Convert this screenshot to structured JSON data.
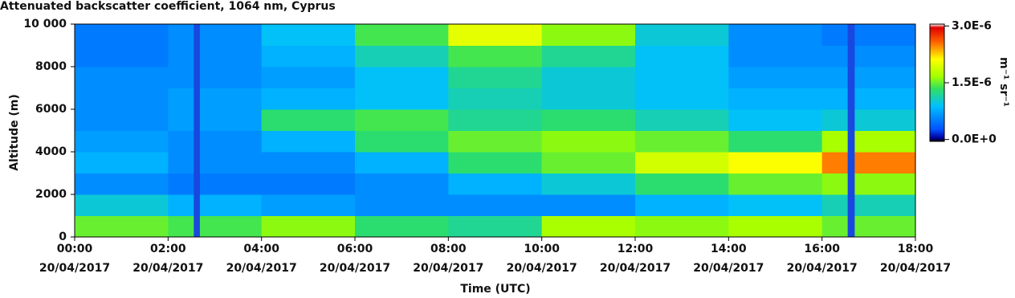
{
  "chart_data": {
    "type": "heatmap",
    "title": "Attenuated backscatter coefficient, 1064 nm, Cyprus",
    "x_label": "Time (UTC)",
    "y_label": "Altitude (m)",
    "colorbar_label": "m⁻¹ sr⁻¹",
    "xlim": [
      0,
      18
    ],
    "xticks": [
      {
        "value": 0,
        "label": "00:00 20/04/2017"
      },
      {
        "value": 2,
        "label": "02:00 20/04/2017"
      },
      {
        "value": 4,
        "label": "04:00 20/04/2017"
      },
      {
        "value": 6,
        "label": "06:00 20/04/2017"
      },
      {
        "value": 8,
        "label": "08:00 20/04/2017"
      },
      {
        "value": 10,
        "label": "10:00 20/04/2017"
      },
      {
        "value": 12,
        "label": "12:00 20/04/2017"
      },
      {
        "value": 14,
        "label": "14:00 20/04/2017"
      },
      {
        "value": 16,
        "label": "16:00 20/04/2017"
      },
      {
        "value": 18,
        "label": "18:00 20/04/2017"
      }
    ],
    "ylim": [
      0,
      10000
    ],
    "yticks": [
      0,
      2000,
      4000,
      6000,
      8000,
      {
        "value": 10000,
        "label": "10 000"
      }
    ],
    "x_bins": [
      0,
      2,
      4,
      6,
      8,
      10,
      12,
      14,
      16,
      18
    ],
    "y_bins": [
      0,
      1000,
      2000,
      3000,
      4000,
      5000,
      6000,
      7000,
      8000,
      9000,
      10000
    ],
    "z": [
      [
        1.5e-06,
        1.4e-06,
        1.6e-06,
        1.3e-06,
        1.2e-06,
        1.7e-06,
        1.6e-06,
        1.7e-06,
        1.5e-06
      ],
      [
        1e-06,
        8e-07,
        7e-07,
        6e-07,
        6e-07,
        6e-07,
        8e-07,
        9e-07,
        1.1e-06
      ],
      [
        6e-07,
        5e-07,
        5e-07,
        6e-07,
        8e-07,
        1e-06,
        1.3e-06,
        1.5e-06,
        1.6e-06
      ],
      [
        8e-07,
        6e-07,
        6e-07,
        8e-07,
        1.3e-06,
        1.5e-06,
        1.9e-06,
        2.1e-06,
        2.5e-06
      ],
      [
        7e-07,
        6e-07,
        8e-07,
        1.3e-06,
        1.5e-06,
        1.6e-06,
        1.5e-06,
        1.3e-06,
        1.7e-06
      ],
      [
        6e-07,
        7e-07,
        1.3e-06,
        1.4e-06,
        1.2e-06,
        1.3e-06,
        1.1e-06,
        9e-07,
        1e-06
      ],
      [
        6e-07,
        7e-07,
        8e-07,
        9e-07,
        1.1e-06,
        1e-06,
        9e-07,
        8e-07,
        8e-07
      ],
      [
        6e-07,
        6e-07,
        7e-07,
        9e-07,
        1.2e-06,
        1e-06,
        9e-07,
        7e-07,
        7e-07
      ],
      [
        5e-07,
        6e-07,
        8e-07,
        1.1e-06,
        1.4e-06,
        1.2e-06,
        9e-07,
        6e-07,
        6e-07
      ],
      [
        5e-07,
        6e-07,
        9e-07,
        1.4e-06,
        2e-06,
        1.6e-06,
        1e-06,
        6e-07,
        5e-07
      ]
    ],
    "gaps": [
      [
        2.55,
        2.68
      ],
      [
        16.55,
        16.7
      ]
    ],
    "zlim": [
      -5e-08,
      3.05e-06
    ],
    "zticks": [
      {
        "value": 0,
        "label": "0.0E+0"
      },
      {
        "value": 1.5e-06,
        "label": "1.5E-6"
      },
      {
        "value": 3e-06,
        "label": "3.0E-6"
      }
    ]
  }
}
